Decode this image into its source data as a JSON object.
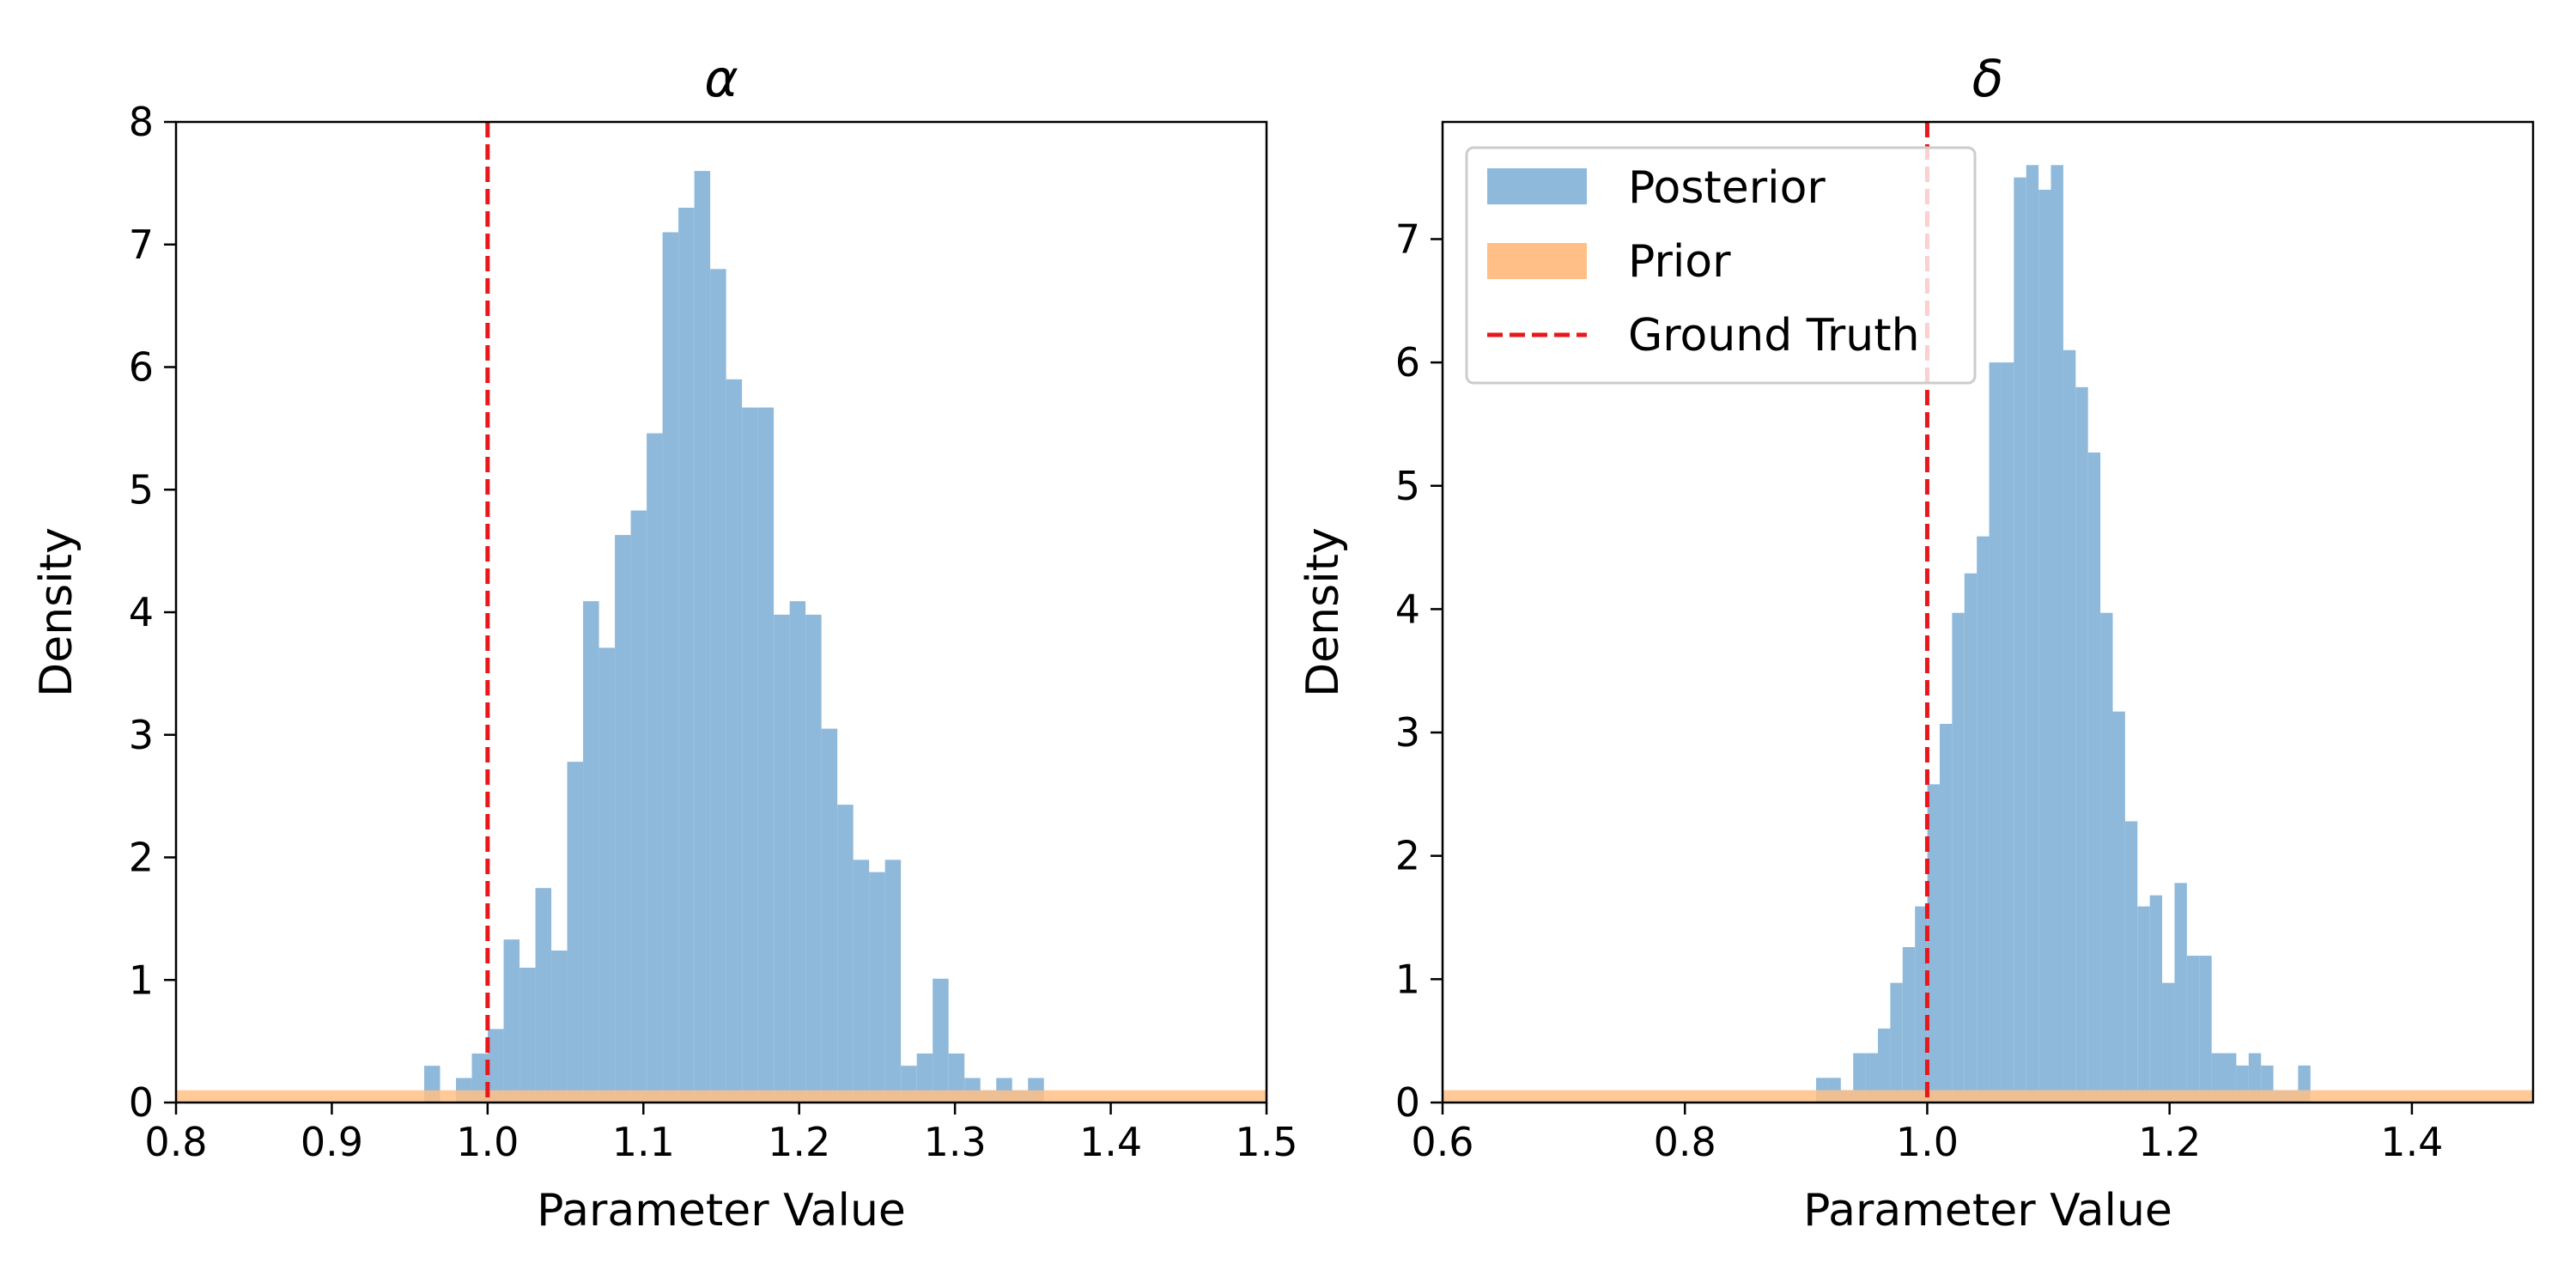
{
  "colors": {
    "posterior": "#8fb9da",
    "prior": "#ffbf86",
    "ground_truth": "#e8171c",
    "legend_border": "#cccccc"
  },
  "legend": {
    "location": "upper left of right panel",
    "entries": [
      "Posterior",
      "Prior",
      "Ground Truth"
    ]
  },
  "chart_data": [
    {
      "type": "histogram",
      "title": "α",
      "xlabel": "Parameter Value",
      "ylabel": "Density",
      "xlim": [
        0.8,
        1.5
      ],
      "ylim": [
        0,
        8
      ],
      "xticks": [
        0.8,
        0.9,
        1.0,
        1.1,
        1.2,
        1.3,
        1.4,
        1.5
      ],
      "xtick_labels": [
        "0.8",
        "0.9",
        "1.0",
        "1.1",
        "1.2",
        "1.3",
        "1.4",
        "1.5"
      ],
      "yticks": [
        0,
        1,
        2,
        3,
        4,
        5,
        6,
        7,
        8
      ],
      "ytick_labels": [
        "0",
        "1",
        "2",
        "3",
        "4",
        "5",
        "6",
        "7",
        "8"
      ],
      "grid": false,
      "ground_truth": 1.0,
      "prior": {
        "name": "Prior",
        "x0": 0.8,
        "x1": 1.5,
        "density": 0.1
      },
      "posterior": {
        "name": "Posterior",
        "bin_width": 0.0102,
        "bins": [
          [
            0.9593,
            0.3
          ],
          [
            0.9695,
            0.0
          ],
          [
            0.9797,
            0.2
          ],
          [
            0.9899,
            0.4
          ],
          [
            1.0001,
            0.6
          ],
          [
            1.0103,
            1.33
          ],
          [
            1.0205,
            1.1
          ],
          [
            1.0307,
            1.75
          ],
          [
            1.0409,
            1.24
          ],
          [
            1.0511,
            2.78
          ],
          [
            1.0613,
            4.09
          ],
          [
            1.0715,
            3.71
          ],
          [
            1.0817,
            4.63
          ],
          [
            1.0919,
            4.83
          ],
          [
            1.1021,
            5.46
          ],
          [
            1.1123,
            7.1
          ],
          [
            1.1225,
            7.3
          ],
          [
            1.1327,
            7.6
          ],
          [
            1.1429,
            6.8
          ],
          [
            1.1531,
            5.9
          ],
          [
            1.1633,
            5.67
          ],
          [
            1.1735,
            5.67
          ],
          [
            1.1837,
            3.98
          ],
          [
            1.1939,
            4.09
          ],
          [
            1.2041,
            3.98
          ],
          [
            1.2143,
            3.05
          ],
          [
            1.2245,
            2.43
          ],
          [
            1.2347,
            1.98
          ],
          [
            1.2449,
            1.88
          ],
          [
            1.2551,
            1.98
          ],
          [
            1.2653,
            0.3
          ],
          [
            1.2755,
            0.4
          ],
          [
            1.2857,
            1.01
          ],
          [
            1.2959,
            0.4
          ],
          [
            1.3061,
            0.2
          ],
          [
            1.3163,
            0.1
          ],
          [
            1.3265,
            0.2
          ],
          [
            1.3367,
            0.1
          ],
          [
            1.3469,
            0.2
          ]
        ]
      }
    },
    {
      "type": "histogram",
      "title": "δ",
      "xlabel": "Parameter Value",
      "ylabel": "Density",
      "xlim": [
        0.6,
        1.5
      ],
      "ylim": [
        0,
        7.95
      ],
      "xticks": [
        0.6,
        0.8,
        1.0,
        1.2,
        1.4
      ],
      "xtick_labels": [
        "0.6",
        "0.8",
        "1.0",
        "1.2",
        "1.4"
      ],
      "yticks": [
        0,
        1,
        2,
        3,
        4,
        5,
        6,
        7
      ],
      "ytick_labels": [
        "0",
        "1",
        "2",
        "3",
        "4",
        "5",
        "6",
        "7"
      ],
      "grid": false,
      "ground_truth": 1.0,
      "prior": {
        "name": "Prior",
        "x0": 0.6,
        "x1": 1.5,
        "density": 0.1
      },
      "posterior": {
        "name": "Posterior",
        "bin_width": 0.0102,
        "bins": [
          [
            0.9083,
            0.2
          ],
          [
            0.9185,
            0.2
          ],
          [
            0.9287,
            0.1
          ],
          [
            0.9389,
            0.4
          ],
          [
            0.9491,
            0.4
          ],
          [
            0.9593,
            0.6
          ],
          [
            0.9695,
            0.97
          ],
          [
            0.9797,
            1.26
          ],
          [
            0.9899,
            1.59
          ],
          [
            1.0001,
            2.58
          ],
          [
            1.0103,
            3.07
          ],
          [
            1.0205,
            3.97
          ],
          [
            1.0307,
            4.29
          ],
          [
            1.0409,
            4.59
          ],
          [
            1.0511,
            6.0
          ],
          [
            1.0613,
            6.0
          ],
          [
            1.0715,
            7.5
          ],
          [
            1.0817,
            7.6
          ],
          [
            1.0919,
            7.4
          ],
          [
            1.1021,
            7.6
          ],
          [
            1.1123,
            6.1
          ],
          [
            1.1225,
            5.8
          ],
          [
            1.1327,
            5.27
          ],
          [
            1.1429,
            3.97
          ],
          [
            1.1531,
            3.17
          ],
          [
            1.1633,
            2.28
          ],
          [
            1.1735,
            1.59
          ],
          [
            1.1837,
            1.68
          ],
          [
            1.1939,
            0.97
          ],
          [
            1.2041,
            1.78
          ],
          [
            1.2143,
            1.19
          ],
          [
            1.2245,
            1.19
          ],
          [
            1.2347,
            0.4
          ],
          [
            1.2449,
            0.4
          ],
          [
            1.2551,
            0.3
          ],
          [
            1.2653,
            0.4
          ],
          [
            1.2755,
            0.3
          ],
          [
            1.2857,
            0.1
          ],
          [
            1.2959,
            0.1
          ],
          [
            1.3061,
            0.3
          ]
        ]
      }
    }
  ]
}
